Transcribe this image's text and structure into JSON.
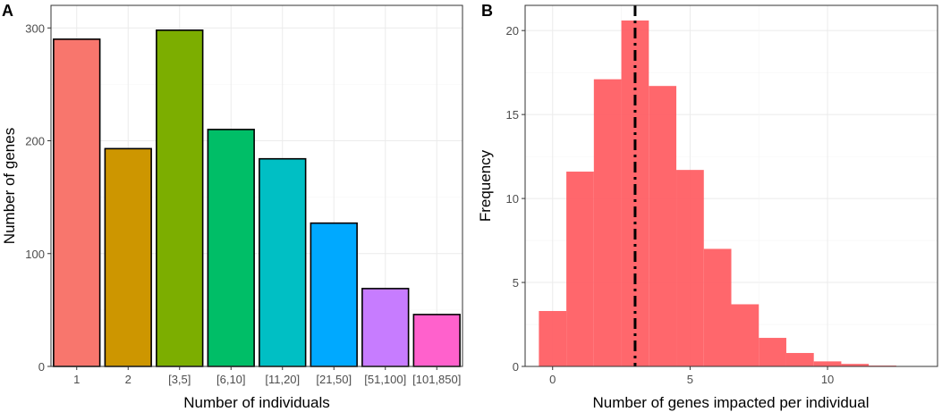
{
  "chart_data": [
    {
      "panel": "A",
      "type": "bar",
      "xlabel": "Number of individuals",
      "ylabel": "Number of genes",
      "ylim": [
        0,
        320
      ],
      "yticks": [
        0,
        100,
        200,
        300
      ],
      "categories": [
        "1",
        "2",
        "[3,5]",
        "[6,10]",
        "[11,20]",
        "[21,50]",
        "[51,100]",
        "[101,850]"
      ],
      "values": [
        290,
        193,
        298,
        210,
        184,
        127,
        69,
        46
      ],
      "colors": [
        "#F8766D",
        "#CD9600",
        "#7CAE00",
        "#00BE67",
        "#00BFC4",
        "#00A9FF",
        "#C77CFF",
        "#FF61CC"
      ],
      "grid": true
    },
    {
      "panel": "B",
      "type": "histogram",
      "xlabel": "Number of genes impacted per individual",
      "ylabel": "Frequency",
      "xlim": [
        -1,
        14
      ],
      "ylim": [
        0,
        21.5
      ],
      "xticks": [
        0,
        5,
        10
      ],
      "yticks": [
        0,
        5,
        10,
        15,
        20
      ],
      "bins": [
        {
          "x0": -0.5,
          "x1": 0.5,
          "value": 3.3
        },
        {
          "x0": 0.5,
          "x1": 1.5,
          "value": 11.6
        },
        {
          "x0": 1.5,
          "x1": 2.5,
          "value": 17.1
        },
        {
          "x0": 2.5,
          "x1": 3.5,
          "value": 20.6
        },
        {
          "x0": 3.5,
          "x1": 4.5,
          "value": 16.7
        },
        {
          "x0": 4.5,
          "x1": 5.5,
          "value": 11.7
        },
        {
          "x0": 5.5,
          "x1": 6.5,
          "value": 7.0
        },
        {
          "x0": 6.5,
          "x1": 7.5,
          "value": 3.7
        },
        {
          "x0": 7.5,
          "x1": 8.5,
          "value": 1.7
        },
        {
          "x0": 8.5,
          "x1": 9.5,
          "value": 0.8
        },
        {
          "x0": 9.5,
          "x1": 10.5,
          "value": 0.3
        },
        {
          "x0": 10.5,
          "x1": 11.5,
          "value": 0.15
        },
        {
          "x0": 11.5,
          "x1": 12.5,
          "value": 0.05
        },
        {
          "x0": 12.5,
          "x1": 13.5,
          "value": 0.02
        }
      ],
      "fill_color": "#FF5A5F",
      "reference_line": {
        "x": 3,
        "style": "dot-dash",
        "color": "#000000"
      },
      "grid": true
    }
  ],
  "panel_labels": {
    "a": "A",
    "b": "B"
  }
}
